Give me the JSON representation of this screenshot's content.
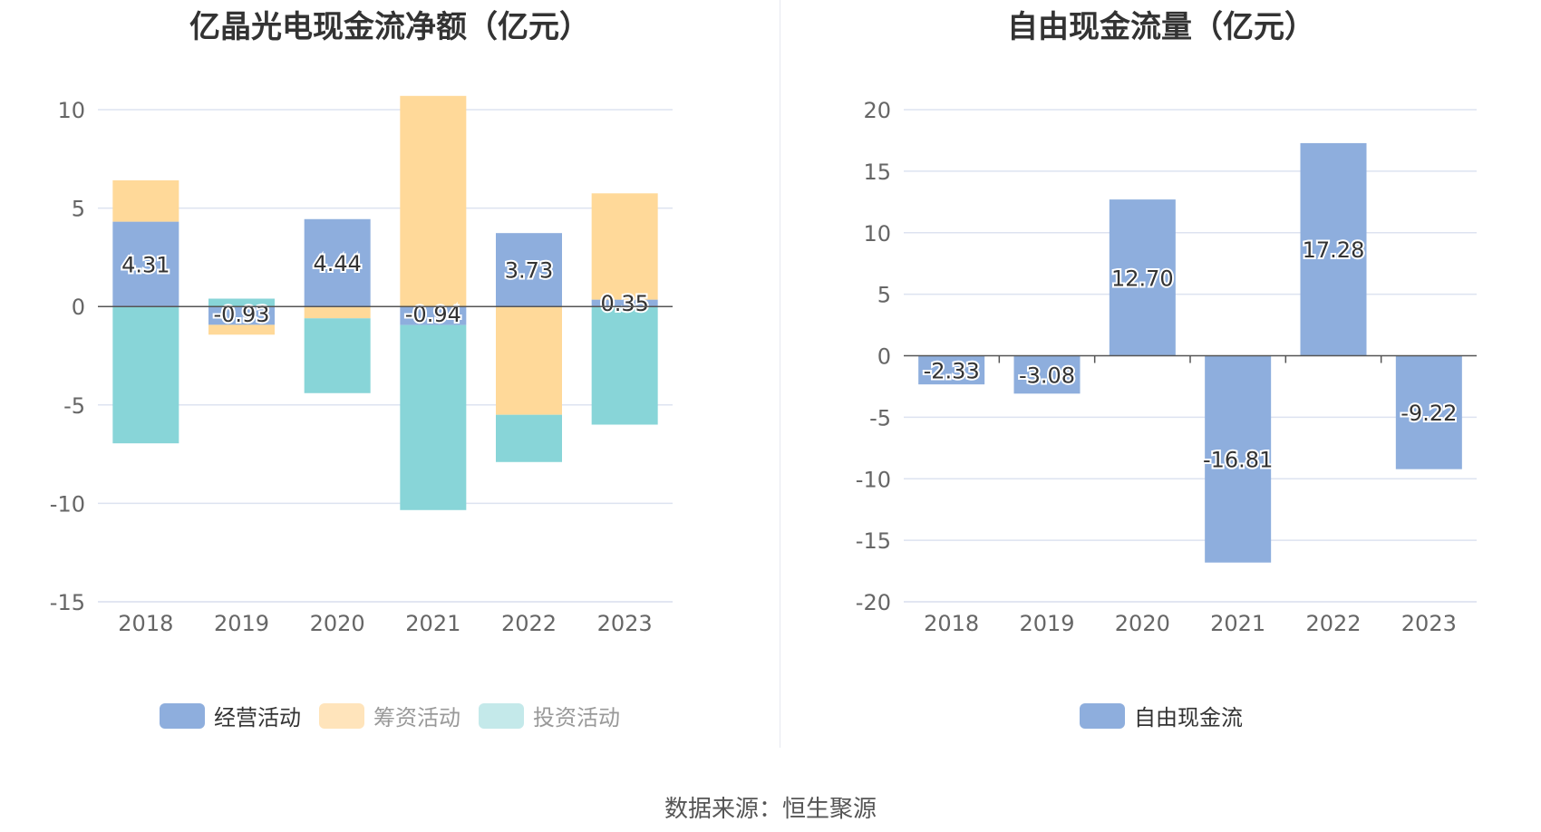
{
  "source_text": "数据来源：恒生聚源",
  "chart_data": [
    {
      "type": "bar",
      "stacked": true,
      "title": "亿晶光电现金流净额（亿元）",
      "categories": [
        "2018",
        "2019",
        "2020",
        "2021",
        "2022",
        "2023"
      ],
      "ylim": [
        -15,
        10
      ],
      "yticks": [
        "10",
        "5",
        "0",
        "-5",
        "-10",
        "-15"
      ],
      "grid": true,
      "legend_position": "bottom",
      "series": [
        {
          "name": "经营活动",
          "color": "#8eaedd",
          "values": [
            4.31,
            -0.93,
            4.44,
            -0.94,
            3.73,
            0.35
          ]
        },
        {
          "name": "筹资活动",
          "color": "#ffd999",
          "values": [
            2.1,
            -0.5,
            -0.6,
            10.7,
            -5.5,
            5.4
          ]
        },
        {
          "name": "投资活动",
          "color": "#88d5d8",
          "values": [
            -6.95,
            0.4,
            -3.8,
            -9.4,
            -2.4,
            -6.0
          ]
        }
      ],
      "data_labels": [
        "4.31",
        "-0.93",
        "4.44",
        "-0.94",
        "3.73",
        "0.35"
      ]
    },
    {
      "type": "bar",
      "title": "自由现金流量（亿元）",
      "categories": [
        "2018",
        "2019",
        "2020",
        "2021",
        "2022",
        "2023"
      ],
      "ylim": [
        -20,
        20
      ],
      "yticks": [
        "20",
        "15",
        "10",
        "5",
        "0",
        "-5",
        "-10",
        "-15",
        "-20"
      ],
      "grid": true,
      "legend_position": "bottom",
      "series": [
        {
          "name": "自由现金流",
          "color": "#8eaedd",
          "values": [
            -2.33,
            -3.08,
            12.7,
            -16.81,
            17.28,
            -9.22
          ]
        }
      ],
      "data_labels": [
        "-2.33",
        "-3.08",
        "12.70",
        "-16.81",
        "17.28",
        "-9.22"
      ]
    }
  ],
  "legend_left": [
    {
      "label": "经营活动",
      "color": "#8eaedd",
      "dim": false
    },
    {
      "label": "筹资活动",
      "color": "#ffe4bb",
      "dim": true
    },
    {
      "label": "投资活动",
      "color": "#c4e9ea",
      "dim": true
    }
  ],
  "legend_right": [
    {
      "label": "自由现金流",
      "color": "#8eaedd",
      "dim": false
    }
  ]
}
